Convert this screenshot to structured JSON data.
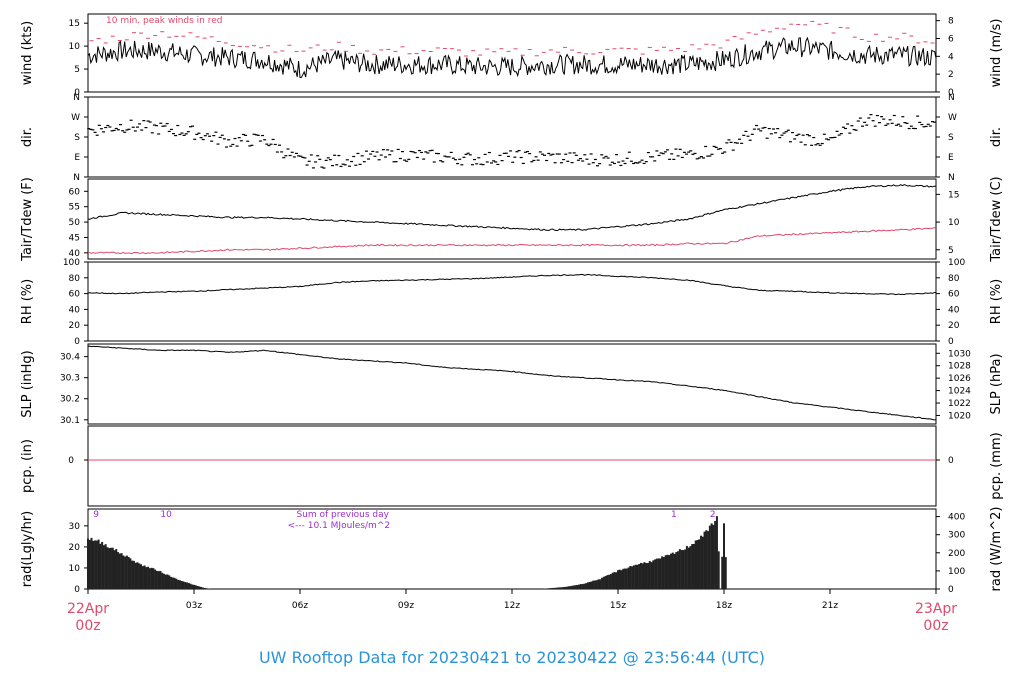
{
  "footer": {
    "title_prefix": "UW Rooftop Data for",
    "start": "20230421",
    "to": "to",
    "end": "20230422 @ 23:56:44",
    "tz": "(UTC)"
  },
  "colors": {
    "accent_red": "#e04a6a",
    "purple": "#9b30d0",
    "line": "#000000",
    "title_blue": "#2b94d6"
  },
  "chart_data": [
    {
      "type": "line",
      "panel": "wind",
      "ylabel": "wind (kts)",
      "ylabel_right": "wind (m/s)",
      "ylim": [
        0,
        17
      ],
      "yticks": [
        0,
        5,
        10,
        15
      ],
      "yticks_right": [
        0,
        2,
        4,
        6,
        8
      ],
      "annotation": "10 min. peak winds in red",
      "x": [
        0,
        1,
        2,
        3,
        4,
        5,
        6,
        7,
        8,
        9,
        10,
        11,
        12,
        13,
        14,
        15,
        16,
        17,
        18,
        19,
        20,
        21,
        22,
        23,
        24
      ],
      "series": [
        {
          "values": [
            8,
            9,
            9,
            8,
            7.5,
            7,
            5,
            7,
            6,
            6,
            6,
            5.5,
            5.5,
            6,
            6,
            6,
            6,
            6,
            7,
            9,
            10,
            9,
            8,
            8,
            7.5
          ]
        },
        {
          "values": [
            11,
            12,
            13,
            12,
            11,
            10,
            9,
            10,
            9,
            9,
            9,
            8.5,
            8.5,
            9,
            9,
            9,
            9,
            9.5,
            10.5,
            13,
            15,
            14,
            12,
            12,
            11
          ]
        }
      ]
    },
    {
      "type": "scatter",
      "panel": "dir",
      "ylabel": "dir.",
      "ylabel_right": "dir.",
      "yticks": [
        "N",
        "E",
        "S",
        "W",
        "N"
      ],
      "x": [
        0,
        1,
        2,
        3,
        4,
        5,
        6,
        7,
        8,
        9,
        10,
        11,
        12,
        13,
        14,
        15,
        16,
        17,
        18,
        19,
        20,
        21,
        22,
        23,
        24
      ],
      "values": [
        210,
        230,
        220,
        200,
        160,
        170,
        70,
        70,
        90,
        100,
        90,
        80,
        90,
        90,
        80,
        80,
        90,
        100,
        130,
        210,
        180,
        160,
        260,
        250,
        240
      ]
    },
    {
      "type": "line",
      "panel": "temp",
      "ylabel": "Tair/Tdew (F)",
      "ylabel_right": "Tair/Tdew (C)",
      "ylim": [
        38,
        64
      ],
      "yticks": [
        40,
        45,
        50,
        55,
        60
      ],
      "yticks_right": [
        5,
        10,
        15
      ],
      "x": [
        0,
        1,
        2,
        3,
        4,
        5,
        6,
        7,
        8,
        9,
        10,
        11,
        12,
        13,
        14,
        15,
        16,
        17,
        18,
        19,
        20,
        21,
        22,
        23,
        24
      ],
      "series": [
        {
          "name": "Tair",
          "values": [
            51,
            53,
            52.5,
            52,
            51.5,
            51.5,
            51,
            50.5,
            50,
            49.5,
            49,
            48.5,
            48,
            47.5,
            47.5,
            48.5,
            49.5,
            51,
            54,
            56,
            58,
            60,
            61.5,
            62,
            61.5
          ]
        },
        {
          "name": "Tdew",
          "values": [
            40,
            40,
            40,
            40.5,
            41,
            41,
            41.5,
            42,
            42.5,
            42.5,
            42.5,
            42.5,
            42.5,
            42.5,
            42.5,
            42.5,
            42.5,
            43,
            43,
            45.5,
            46,
            46.5,
            47,
            47.5,
            48
          ]
        }
      ]
    },
    {
      "type": "line",
      "panel": "rh",
      "ylabel": "RH (%)",
      "ylabel_right": "RH (%)",
      "ylim": [
        0,
        100
      ],
      "yticks": [
        0,
        20,
        40,
        60,
        80,
        100
      ],
      "x": [
        0,
        1,
        2,
        3,
        4,
        5,
        6,
        7,
        8,
        9,
        10,
        11,
        12,
        13,
        14,
        15,
        16,
        17,
        18,
        19,
        20,
        21,
        22,
        23,
        24
      ],
      "values": [
        61,
        60,
        62,
        63,
        65,
        67,
        69,
        74,
        76,
        77,
        78,
        79,
        81,
        83,
        84,
        82,
        80,
        77,
        70,
        64,
        63,
        61,
        60,
        59,
        61
      ]
    },
    {
      "type": "line",
      "panel": "slp",
      "ylabel": "SLP (inHg)",
      "ylabel_right": "SLP (hPa)",
      "ylim": [
        30.08,
        30.46
      ],
      "yticks": [
        30.1,
        30.2,
        30.3,
        30.4
      ],
      "yticks_right": [
        1020,
        1022,
        1024,
        1026,
        1028,
        1030
      ],
      "x": [
        0,
        1,
        2,
        3,
        4,
        5,
        6,
        7,
        8,
        9,
        10,
        11,
        12,
        13,
        14,
        15,
        16,
        17,
        18,
        19,
        20,
        21,
        22,
        23,
        24
      ],
      "values": [
        30.45,
        30.44,
        30.43,
        30.43,
        30.42,
        30.43,
        30.41,
        30.39,
        30.38,
        30.37,
        30.35,
        30.34,
        30.33,
        30.31,
        30.3,
        30.29,
        30.28,
        30.26,
        30.24,
        30.21,
        30.18,
        30.16,
        30.14,
        30.12,
        30.1
      ]
    },
    {
      "type": "line",
      "panel": "pcp",
      "ylabel": "pcp. (in)",
      "ylabel_right": "pcp. (mm)",
      "yticks": [
        0
      ],
      "yticks_right": [
        0
      ],
      "x": [
        0,
        24
      ],
      "values": [
        0,
        0
      ]
    },
    {
      "type": "area",
      "panel": "rad",
      "ylabel": "rad(Lgly/hr)",
      "ylabel_right": "rad (W/m^2)",
      "ylim": [
        0,
        38
      ],
      "yticks": [
        0,
        10,
        20,
        30
      ],
      "yticks_right": [
        0,
        100,
        200,
        300,
        400
      ],
      "annotation_line1": "Sum of previous day",
      "annotation_line2": "<--- 10.1 MJoules/m^2",
      "hour_marks": [
        "9",
        "10",
        "1",
        "2"
      ],
      "x": [
        0,
        0.25,
        0.5,
        1,
        1.5,
        2,
        2.5,
        3,
        3.3,
        3.5,
        12.8,
        13,
        13.5,
        14,
        14.5,
        15,
        15.5,
        16,
        16.5,
        17,
        17.5,
        17.7,
        17.8,
        17.9,
        18,
        18.1
      ],
      "values": [
        25,
        24,
        22,
        17,
        12,
        9,
        5,
        2,
        0.5,
        0,
        0,
        0.3,
        1,
        2.5,
        5,
        9,
        12,
        14,
        17,
        21,
        28,
        33,
        36,
        0,
        32,
        0
      ]
    }
  ],
  "x_axis": {
    "ticks": [
      "03z",
      "06z",
      "09z",
      "12z",
      "15z",
      "18z",
      "21z"
    ],
    "start_date": "22Apr",
    "start_time": "00z",
    "end_date": "23Apr",
    "end_time": "00z"
  }
}
